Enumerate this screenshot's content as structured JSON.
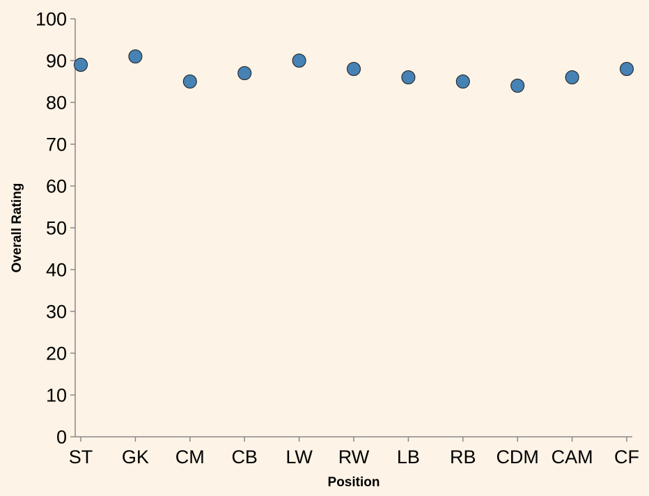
{
  "chart_data": {
    "type": "scatter",
    "categories": [
      "ST",
      "GK",
      "CM",
      "CB",
      "LW",
      "RW",
      "LB",
      "RB",
      "CDM",
      "CAM",
      "CF"
    ],
    "values": [
      89,
      91,
      85,
      87,
      90,
      88,
      86,
      85,
      84,
      86,
      88
    ],
    "xlabel": "Position",
    "ylabel": "Overall Rating",
    "ylim": [
      0,
      100
    ],
    "yticks": [
      0,
      10,
      20,
      30,
      40,
      50,
      60,
      70,
      80,
      90,
      100
    ],
    "grid": false,
    "point_color": "#4682b4",
    "background": "#fdf3e6"
  }
}
